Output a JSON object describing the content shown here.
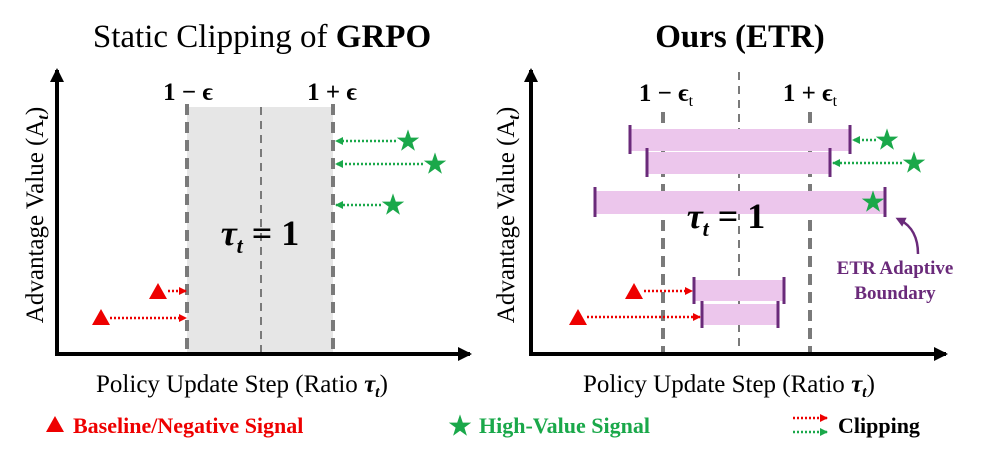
{
  "panels": [
    {
      "title_prefix": "Static Clipping of ",
      "title_bold": "GRPO",
      "lower_bound_label": "1 − ϵ",
      "upper_bound_label": "1 + ϵ",
      "tau_label": "τ",
      "tau_sub": "t",
      "tau_eq": " = 1",
      "y_axis_label": "Advantage Value (A",
      "y_axis_sub": "t",
      "y_axis_close": ")",
      "x_axis_label": "Policy Update Step (Ratio ",
      "x_axis_tau": "τ",
      "x_axis_sub": "t",
      "x_axis_close": ")"
    },
    {
      "title_bold": "Ours (ETR)",
      "lower_bound_label": "1 − ϵ",
      "lower_bound_sub": "t",
      "upper_bound_label": "1 + ϵ",
      "upper_bound_sub": "t",
      "tau_label": "τ",
      "tau_sub": "t",
      "tau_eq": " = 1",
      "y_axis_label": "Advantage Value (A",
      "y_axis_sub": "t",
      "y_axis_close": ")",
      "x_axis_label": "Policy Update Step (Ratio ",
      "x_axis_tau": "τ",
      "x_axis_sub": "t",
      "x_axis_close": ")",
      "annotation_line1": "ETR Adaptive",
      "annotation_line2": "Boundary"
    }
  ],
  "legend": {
    "baseline": "Baseline/Negative Signal",
    "high_value": "High-Value Signal",
    "clipping": "Clipping"
  },
  "colors": {
    "red": "#ee0000",
    "green": "#1aa84a",
    "purple": "#6a2a7a",
    "pink": "#ecc6ec",
    "gray_band": "#e6e6e6",
    "dash": "#7a7a7a"
  }
}
